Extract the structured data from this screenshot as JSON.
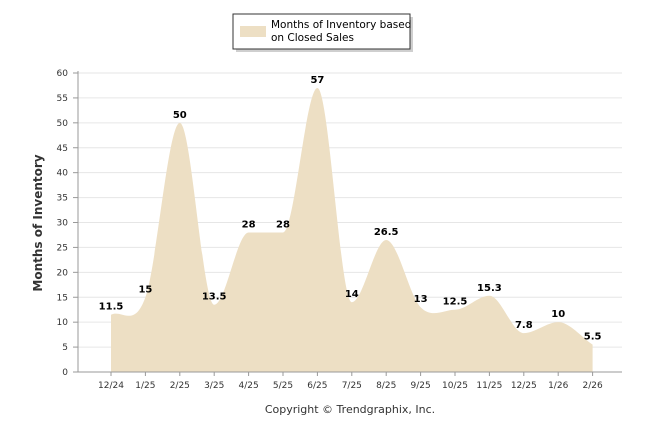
{
  "chart_data": {
    "type": "area",
    "categories": [
      "12/24",
      "1/25",
      "2/25",
      "3/25",
      "4/25",
      "5/25",
      "6/25",
      "7/25",
      "8/25",
      "9/25",
      "10/25",
      "11/25",
      "12/25",
      "1/26",
      "2/26"
    ],
    "series": [
      {
        "name": "Months of Inventory based on Closed Sales",
        "values": [
          11.5,
          15,
          50,
          13.5,
          28,
          28,
          57,
          14,
          26.5,
          13,
          12.5,
          15.3,
          7.8,
          10,
          5.5
        ],
        "data_labels": [
          "11.5",
          "15",
          "50",
          "13.5",
          "28",
          "28",
          "57",
          "14",
          "26.5",
          "13",
          "12.5",
          "15.3",
          "7.8",
          "10",
          "5.5"
        ]
      }
    ],
    "ylabel": "Months of Inventory",
    "ylim": [
      0,
      60
    ],
    "yticks": [
      "0",
      "5",
      "10",
      "15",
      "20",
      "25",
      "30",
      "35",
      "40",
      "45",
      "50",
      "55",
      "60"
    ],
    "grid": true,
    "legend_position": "top-center",
    "legend_lines": [
      "Months of Inventory based",
      "on Closed Sales"
    ],
    "copyright": "Copyright © Trendgraphix, Inc.",
    "colors": {
      "area_fill": "#eddfc4",
      "gridline": "#e6e6e6",
      "axis": "#999999"
    }
  }
}
